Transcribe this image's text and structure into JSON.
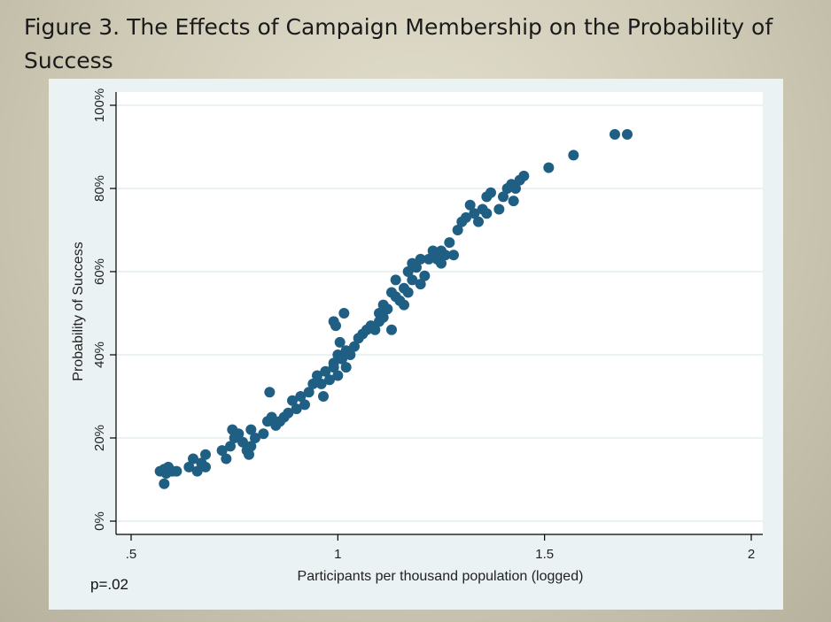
{
  "slide": {
    "title": "Figure 3. The Effects of Campaign Membership on the Probability of Success",
    "note": "p=.02"
  },
  "colors": {
    "background": "#d4d0bd",
    "panel": "#eaf2f3",
    "plot_area": "#ffffff",
    "marker": "#1f5f84",
    "grid": "#dfe9ec"
  },
  "chart_data": {
    "type": "scatter",
    "xlabel": "Participants per thousand population (logged)",
    "ylabel": "Probability of Success",
    "xlim": [
      0.5,
      2.0
    ],
    "ylim": [
      0,
      1.0
    ],
    "xticks": [
      {
        "value": 0.5,
        "label": ".5"
      },
      {
        "value": 1.0,
        "label": "1"
      },
      {
        "value": 1.5,
        "label": "1.5"
      },
      {
        "value": 2.0,
        "label": "2"
      }
    ],
    "yticks": [
      {
        "value": 0.0,
        "label": "0%"
      },
      {
        "value": 0.2,
        "label": "20%"
      },
      {
        "value": 0.4,
        "label": "40%"
      },
      {
        "value": 0.6,
        "label": "60%"
      },
      {
        "value": 0.8,
        "label": "80%"
      },
      {
        "value": 1.0,
        "label": "100%"
      }
    ],
    "grid": "horizontal",
    "legend": "none",
    "points": [
      [
        0.57,
        0.12
      ],
      [
        0.58,
        0.125
      ],
      [
        0.585,
        0.115
      ],
      [
        0.59,
        0.13
      ],
      [
        0.6,
        0.12
      ],
      [
        0.58,
        0.09
      ],
      [
        0.61,
        0.12
      ],
      [
        0.64,
        0.13
      ],
      [
        0.65,
        0.15
      ],
      [
        0.66,
        0.12
      ],
      [
        0.67,
        0.14
      ],
      [
        0.68,
        0.13
      ],
      [
        0.68,
        0.16
      ],
      [
        0.72,
        0.17
      ],
      [
        0.73,
        0.15
      ],
      [
        0.74,
        0.18
      ],
      [
        0.745,
        0.22
      ],
      [
        0.75,
        0.2
      ],
      [
        0.76,
        0.21
      ],
      [
        0.77,
        0.19
      ],
      [
        0.78,
        0.17
      ],
      [
        0.785,
        0.16
      ],
      [
        0.79,
        0.18
      ],
      [
        0.79,
        0.22
      ],
      [
        0.8,
        0.2
      ],
      [
        0.82,
        0.21
      ],
      [
        0.83,
        0.24
      ],
      [
        0.835,
        0.31
      ],
      [
        0.84,
        0.25
      ],
      [
        0.85,
        0.23
      ],
      [
        0.86,
        0.24
      ],
      [
        0.87,
        0.25
      ],
      [
        0.88,
        0.26
      ],
      [
        0.89,
        0.29
      ],
      [
        0.9,
        0.27
      ],
      [
        0.91,
        0.3
      ],
      [
        0.92,
        0.28
      ],
      [
        0.93,
        0.31
      ],
      [
        0.94,
        0.33
      ],
      [
        0.95,
        0.35
      ],
      [
        0.96,
        0.33
      ],
      [
        0.965,
        0.3
      ],
      [
        0.97,
        0.36
      ],
      [
        0.98,
        0.34
      ],
      [
        0.99,
        0.37
      ],
      [
        1.0,
        0.35
      ],
      [
        1.0,
        0.4
      ],
      [
        0.99,
        0.38
      ],
      [
        1.005,
        0.43
      ],
      [
        1.01,
        0.39
      ],
      [
        1.02,
        0.37
      ],
      [
        1.02,
        0.41
      ],
      [
        1.03,
        0.4
      ],
      [
        1.04,
        0.42
      ],
      [
        1.05,
        0.44
      ],
      [
        0.995,
        0.47
      ],
      [
        0.99,
        0.48
      ],
      [
        1.015,
        0.5
      ],
      [
        1.06,
        0.45
      ],
      [
        1.07,
        0.46
      ],
      [
        1.08,
        0.47
      ],
      [
        1.09,
        0.46
      ],
      [
        1.1,
        0.48
      ],
      [
        1.1,
        0.5
      ],
      [
        1.11,
        0.52
      ],
      [
        1.11,
        0.49
      ],
      [
        1.12,
        0.51
      ],
      [
        1.13,
        0.46
      ],
      [
        1.13,
        0.55
      ],
      [
        1.14,
        0.54
      ],
      [
        1.14,
        0.58
      ],
      [
        1.15,
        0.53
      ],
      [
        1.16,
        0.56
      ],
      [
        1.16,
        0.52
      ],
      [
        1.17,
        0.6
      ],
      [
        1.17,
        0.55
      ],
      [
        1.18,
        0.58
      ],
      [
        1.18,
        0.62
      ],
      [
        1.19,
        0.61
      ],
      [
        1.2,
        0.57
      ],
      [
        1.2,
        0.63
      ],
      [
        1.21,
        0.59
      ],
      [
        1.22,
        0.63
      ],
      [
        1.23,
        0.65
      ],
      [
        1.24,
        0.63
      ],
      [
        1.25,
        0.62
      ],
      [
        1.25,
        0.65
      ],
      [
        1.26,
        0.64
      ],
      [
        1.27,
        0.67
      ],
      [
        1.28,
        0.64
      ],
      [
        1.29,
        0.7
      ],
      [
        1.3,
        0.72
      ],
      [
        1.31,
        0.73
      ],
      [
        1.32,
        0.76
      ],
      [
        1.33,
        0.74
      ],
      [
        1.34,
        0.72
      ],
      [
        1.35,
        0.75
      ],
      [
        1.36,
        0.74
      ],
      [
        1.36,
        0.78
      ],
      [
        1.37,
        0.79
      ],
      [
        1.39,
        0.75
      ],
      [
        1.4,
        0.78
      ],
      [
        1.41,
        0.8
      ],
      [
        1.42,
        0.81
      ],
      [
        1.425,
        0.77
      ],
      [
        1.43,
        0.8
      ],
      [
        1.44,
        0.82
      ],
      [
        1.45,
        0.83
      ],
      [
        1.51,
        0.85
      ],
      [
        1.57,
        0.88
      ],
      [
        1.67,
        0.93
      ],
      [
        1.7,
        0.93
      ]
    ]
  }
}
